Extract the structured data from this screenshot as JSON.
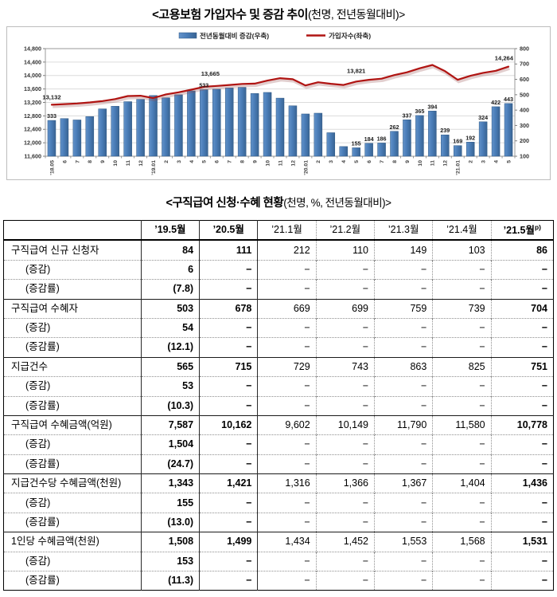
{
  "titles": {
    "chart_main": "<고용보험 가입자수 및 증감 추이",
    "chart_unit": "(천명, 전년동월대비)>",
    "table_main": "<구직급여 신청·수혜 현황",
    "table_unit": "(천명, %, 전년동월대비)>"
  },
  "chart_data": {
    "type": "combo_bar_line",
    "title": "고용보험 가입자수 및 증감 추이(천명, 전년동월대비)",
    "legend_position": "top",
    "grid": true,
    "categories": [
      "’18.05",
      "6",
      "7",
      "8",
      "9",
      "10",
      "11",
      "12",
      "’19.01",
      "2",
      "3",
      "4",
      "5",
      "6",
      "7",
      "8",
      "9",
      "10",
      "11",
      "12",
      "’20.01",
      "2",
      "3",
      "4",
      "5",
      "6",
      "7",
      "8",
      "9",
      "10",
      "11",
      "12",
      "’21.01",
      "2",
      "3",
      "4",
      "5"
    ],
    "series": [
      {
        "name": "전년동월대비 증감(우축)",
        "type": "bar",
        "axis": "right",
        "color": "#4a7db8",
        "values": [
          333,
          345,
          336,
          358,
          408,
          425,
          455,
          470,
          495,
          480,
          500,
          525,
          533,
          536,
          544,
          548,
          508,
          515,
          478,
          428,
          375,
          380,
          253,
          163,
          155,
          184,
          186,
          262,
          337,
          365,
          394,
          239,
          169,
          192,
          324,
          422,
          443
        ]
      },
      {
        "name": "가입자수(좌축)",
        "type": "line",
        "axis": "left",
        "color": "#b01412",
        "values": [
          13132,
          13150,
          13170,
          13200,
          13240,
          13300,
          13390,
          13400,
          13330,
          13440,
          13500,
          13580,
          13665,
          13690,
          13720,
          13750,
          13760,
          13850,
          13920,
          13890,
          13705,
          13800,
          13755,
          13720,
          13821,
          13874,
          13906,
          14012,
          14097,
          14215,
          14314,
          14129,
          13874,
          13992,
          14079,
          14142,
          14264
        ]
      }
    ],
    "left_axis": {
      "min": 11600,
      "max": 14800,
      "ticks": [
        "14,800",
        "14,400",
        "14,000",
        "13,600",
        "13,200",
        "12,800",
        "12,400",
        "12,000",
        "11,600"
      ]
    },
    "right_axis": {
      "min": 100,
      "max": 800,
      "ticks": [
        "800",
        "700",
        "600",
        "500",
        "400",
        "300",
        "200",
        "100"
      ]
    },
    "bar_labels": {
      "0": "333",
      "12": "533",
      "24": "155",
      "25": "184",
      "26": "186",
      "27": "262",
      "28": "337",
      "29": "365",
      "30": "394",
      "31": "239",
      "32": "169",
      "33": "192",
      "34": "324",
      "35": "422",
      "36": "443"
    },
    "line_labels": {
      "0": "13,132",
      "12": "13,665",
      "24": "13,821",
      "36": "14,264"
    }
  },
  "table": {
    "columns": [
      {
        "label": "’19.5월",
        "bold": true
      },
      {
        "label": "’20.5월",
        "bold": true
      },
      {
        "label": "’21.1월",
        "bold": false
      },
      {
        "label": "’21.2월",
        "bold": false
      },
      {
        "label": "’21.3월",
        "bold": false
      },
      {
        "label": "’21.4월",
        "bold": false
      },
      {
        "label": "’21.5월",
        "bold": true,
        "sup": "p)"
      }
    ],
    "bold_value_cols": [
      0,
      1,
      6
    ],
    "rows": [
      {
        "label": "구직급여 신규 신청자",
        "indent": false,
        "group_start": true,
        "values": [
          "84",
          "111",
          "212",
          "110",
          "149",
          "103",
          "86"
        ]
      },
      {
        "label": "(증감)",
        "indent": true,
        "group_start": false,
        "values": [
          "6",
          "−",
          "−",
          "−",
          "−",
          "−",
          "−"
        ]
      },
      {
        "label": "(증감률)",
        "indent": true,
        "group_start": false,
        "values": [
          "(7.8)",
          "−",
          "−",
          "−",
          "−",
          "−",
          "−"
        ]
      },
      {
        "label": "구직급여 수혜자",
        "indent": false,
        "group_start": true,
        "values": [
          "503",
          "678",
          "669",
          "699",
          "759",
          "739",
          "704"
        ]
      },
      {
        "label": "(증감)",
        "indent": true,
        "group_start": false,
        "values": [
          "54",
          "−",
          "−",
          "−",
          "−",
          "−",
          "−"
        ]
      },
      {
        "label": "(증감률)",
        "indent": true,
        "group_start": false,
        "values": [
          "(12.1)",
          "−",
          "−",
          "−",
          "−",
          "−",
          "−"
        ]
      },
      {
        "label": "지급건수",
        "indent": false,
        "group_start": true,
        "values": [
          "565",
          "715",
          "729",
          "743",
          "863",
          "825",
          "751"
        ]
      },
      {
        "label": "(증감)",
        "indent": true,
        "group_start": false,
        "values": [
          "53",
          "−",
          "−",
          "−",
          "−",
          "−",
          "−"
        ]
      },
      {
        "label": "(증감률)",
        "indent": true,
        "group_start": false,
        "values": [
          "(10.3)",
          "−",
          "−",
          "−",
          "−",
          "−",
          "−"
        ]
      },
      {
        "label": "구직급여 수혜금액(억원)",
        "indent": false,
        "group_start": true,
        "values": [
          "7,587",
          "10,162",
          "9,602",
          "10,149",
          "11,790",
          "11,580",
          "10,778"
        ]
      },
      {
        "label": "(증감)",
        "indent": true,
        "group_start": false,
        "values": [
          "1,504",
          "−",
          "−",
          "−",
          "−",
          "−",
          "−"
        ]
      },
      {
        "label": "(증감률)",
        "indent": true,
        "group_start": false,
        "values": [
          "(24.7)",
          "−",
          "−",
          "−",
          "−",
          "−",
          "−"
        ]
      },
      {
        "label": "지급건수당 수혜금액(천원)",
        "indent": false,
        "group_start": true,
        "values": [
          "1,343",
          "1,421",
          "1,316",
          "1,366",
          "1,367",
          "1,404",
          "1,436"
        ]
      },
      {
        "label": "(증감)",
        "indent": true,
        "group_start": false,
        "values": [
          "155",
          "−",
          "−",
          "−",
          "−",
          "−",
          "−"
        ]
      },
      {
        "label": "(증감률)",
        "indent": true,
        "group_start": false,
        "values": [
          "(13.0)",
          "−",
          "−",
          "−",
          "−",
          "−",
          "−"
        ]
      },
      {
        "label": "1인당 수혜금액(천원)",
        "indent": false,
        "group_start": true,
        "values": [
          "1,508",
          "1,499",
          "1,434",
          "1,452",
          "1,553",
          "1,568",
          "1,531"
        ]
      },
      {
        "label": "(증감)",
        "indent": true,
        "group_start": false,
        "values": [
          "153",
          "−",
          "−",
          "−",
          "−",
          "−",
          "−"
        ]
      },
      {
        "label": "(증감률)",
        "indent": true,
        "group_start": false,
        "values": [
          "(11.3)",
          "−",
          "−",
          "−",
          "−",
          "−",
          "−"
        ]
      }
    ]
  }
}
